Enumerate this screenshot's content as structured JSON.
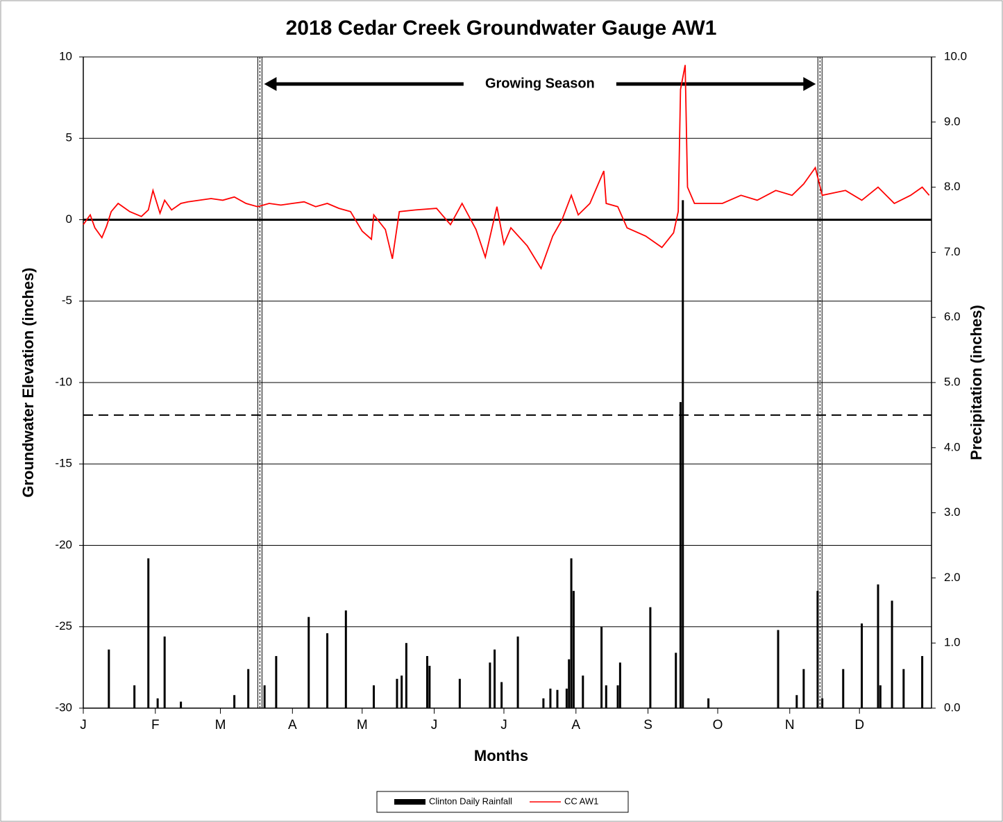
{
  "chart_data": {
    "type": "combo",
    "title": "2018 Cedar Creek Groundwater Gauge AW1",
    "x_label": "Months",
    "y_label": "Groundwater Elevation (inches)",
    "y2_label": "Precipitation (inches)",
    "xlim": [
      0,
      365
    ],
    "xticks": [
      {
        "value": 0,
        "label": "J"
      },
      {
        "value": 31,
        "label": "F"
      },
      {
        "value": 59,
        "label": "M"
      },
      {
        "value": 90,
        "label": "A"
      },
      {
        "value": 120,
        "label": "M"
      },
      {
        "value": 151,
        "label": "J"
      },
      {
        "value": 181,
        "label": "J"
      },
      {
        "value": 212,
        "label": "A"
      },
      {
        "value": 243,
        "label": "S"
      },
      {
        "value": 273,
        "label": "O"
      },
      {
        "value": 304,
        "label": "N"
      },
      {
        "value": 334,
        "label": "D"
      }
    ],
    "ylim": [
      -30,
      10
    ],
    "yticks": [
      10,
      5,
      0,
      -5,
      -10,
      -15,
      -20,
      -25,
      -30
    ],
    "y2lim": [
      0,
      10
    ],
    "y2ticks": [
      {
        "value": 10,
        "label": "10.0"
      },
      {
        "value": 9,
        "label": "9.0"
      },
      {
        "value": 8,
        "label": "8.0"
      },
      {
        "value": 7,
        "label": "7.0"
      },
      {
        "value": 6,
        "label": "6.0"
      },
      {
        "value": 5,
        "label": "5.0"
      },
      {
        "value": 4,
        "label": "4.0"
      },
      {
        "value": 3,
        "label": "3.0"
      },
      {
        "value": 2,
        "label": "2.0"
      },
      {
        "value": 1,
        "label": "1.0"
      },
      {
        "value": 0,
        "label": "0.0"
      }
    ],
    "grid": true,
    "reference_line": -12,
    "growing_season": {
      "label": "Growing Season",
      "start": 76,
      "end": 317
    },
    "legend": "bottom",
    "series": [
      {
        "name": "Clinton Daily Rainfall",
        "type": "bar",
        "axis": "y2",
        "color": "#000000",
        "x": [
          11,
          22,
          28,
          32,
          35,
          42,
          65,
          71,
          78,
          83,
          97,
          105,
          113,
          125,
          135,
          137,
          139,
          148,
          149,
          162,
          175,
          177,
          180,
          187,
          198,
          201,
          204,
          208,
          209,
          210,
          211,
          215,
          223,
          225,
          230,
          231,
          244,
          255,
          257,
          258,
          269,
          299,
          307,
          310,
          316,
          318,
          327,
          335,
          342,
          343,
          348,
          353,
          361
        ],
        "values": [
          0.9,
          0.35,
          2.3,
          0.15,
          1.1,
          0.1,
          0.2,
          0.6,
          0.35,
          0.8,
          1.4,
          1.15,
          1.5,
          0.35,
          0.45,
          0.5,
          1.0,
          0.8,
          0.65,
          0.45,
          0.7,
          0.9,
          0.4,
          1.1,
          0.15,
          0.3,
          0.28,
          0.3,
          0.75,
          2.3,
          1.8,
          0.5,
          1.25,
          0.35,
          0.35,
          0.7,
          1.55,
          0.85,
          4.7,
          7.8,
          0.15,
          1.2,
          0.2,
          0.6,
          1.8,
          0.15,
          0.6,
          1.3,
          1.9,
          0.35,
          1.65,
          0.6,
          0.8
        ]
      },
      {
        "name": "CC AW1",
        "type": "line",
        "axis": "y",
        "color": "#ff0000",
        "x": [
          0,
          3,
          5,
          8,
          10,
          12,
          15,
          20,
          25,
          28,
          30,
          33,
          35,
          38,
          42,
          45,
          50,
          55,
          60,
          65,
          70,
          75,
          80,
          85,
          90,
          95,
          100,
          105,
          110,
          115,
          120,
          124,
          125,
          130,
          133,
          136,
          143,
          152,
          158,
          163,
          169,
          173,
          178,
          181,
          184,
          191,
          197,
          202,
          206,
          210,
          213,
          218,
          224,
          225,
          230,
          234,
          242,
          249,
          254,
          256,
          257,
          259,
          260,
          263,
          275,
          283,
          290,
          298,
          305,
          310,
          315,
          318,
          328,
          335,
          342,
          349,
          356,
          361,
          364
        ],
        "values": [
          -0.3,
          0.3,
          -0.5,
          -1.1,
          -0.4,
          0.5,
          1.0,
          0.5,
          0.2,
          0.6,
          1.8,
          0.4,
          1.2,
          0.6,
          1.0,
          1.1,
          1.2,
          1.3,
          1.2,
          1.4,
          1.0,
          0.8,
          1.0,
          0.9,
          1.0,
          1.1,
          0.8,
          1.0,
          0.7,
          0.5,
          -0.7,
          -1.2,
          0.3,
          -0.6,
          -2.4,
          0.5,
          0.6,
          0.7,
          -0.3,
          1.0,
          -0.6,
          -2.3,
          0.8,
          -1.5,
          -0.5,
          -1.6,
          -3.0,
          -1.0,
          0.0,
          1.5,
          0.3,
          1.0,
          3.0,
          1.0,
          0.8,
          -0.5,
          -1.0,
          -1.7,
          -0.8,
          0.5,
          8.0,
          9.5,
          2.0,
          1.0,
          1.0,
          1.5,
          1.2,
          1.8,
          1.5,
          2.2,
          3.2,
          1.5,
          1.8,
          1.2,
          2.0,
          1.0,
          1.5,
          2.0,
          1.5
        ]
      }
    ]
  }
}
